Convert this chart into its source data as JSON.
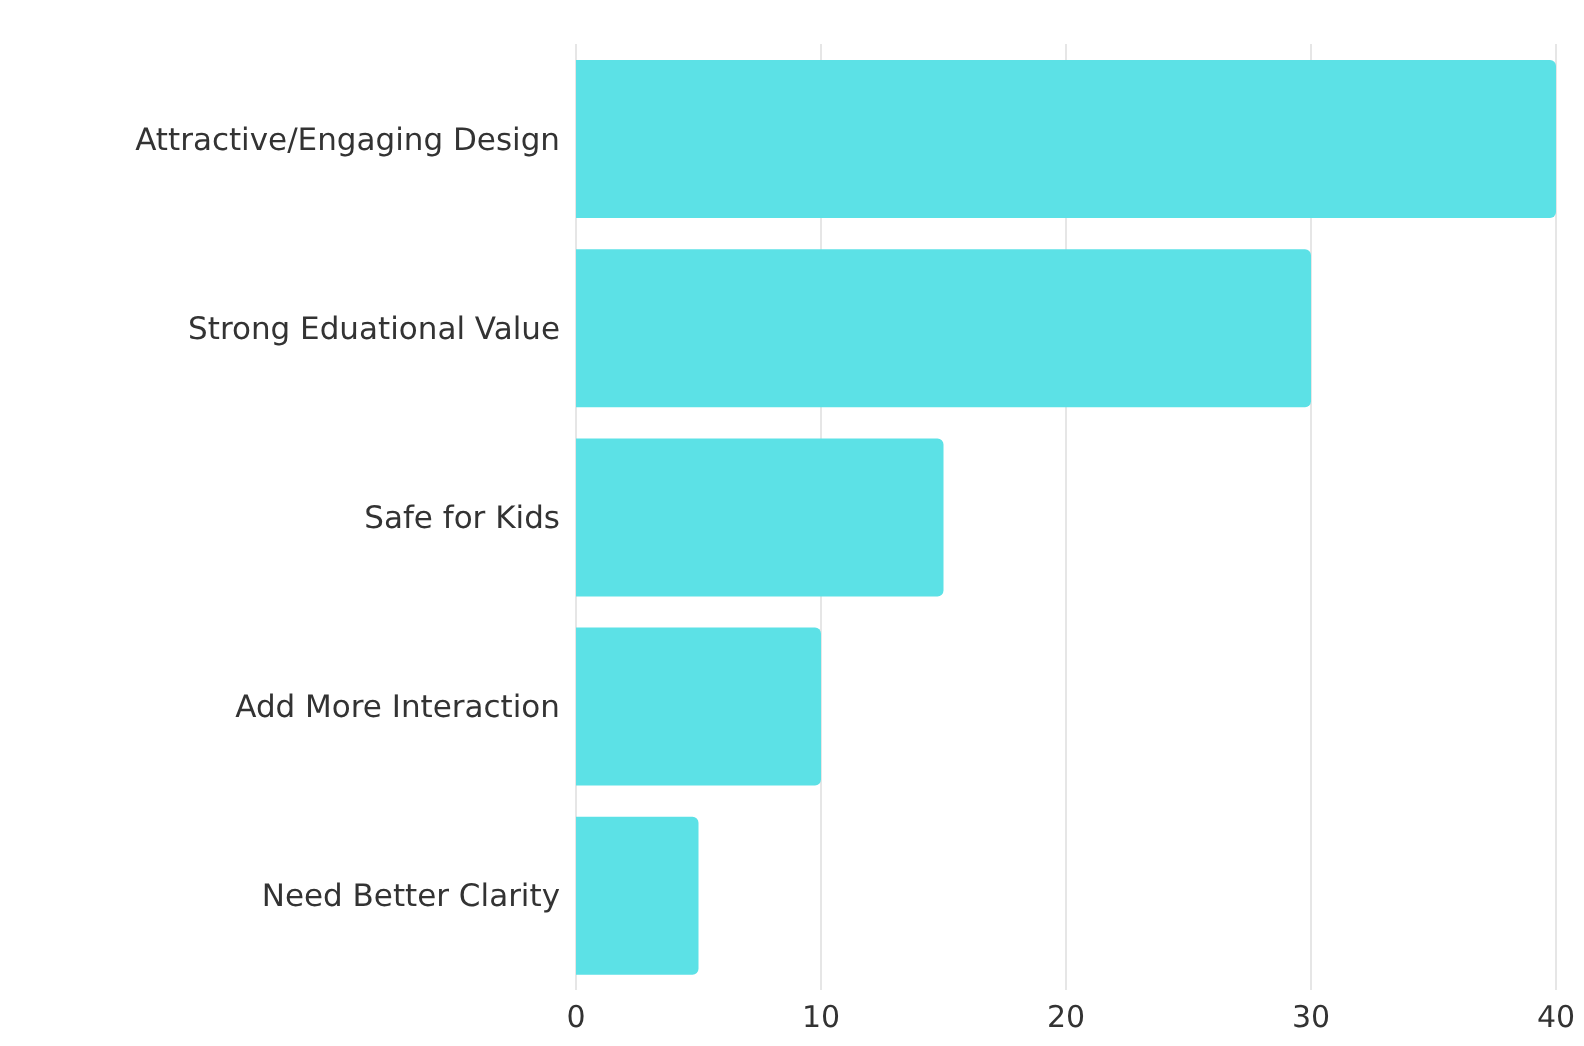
{
  "chart_data": {
    "type": "bar",
    "orientation": "horizontal",
    "categories": [
      "Attractive/Engaging Design",
      "Strong Eduational Value",
      "Safe for Kids",
      "Add More Interaction",
      "Need Better Clarity"
    ],
    "values": [
      40,
      30,
      15,
      10,
      5
    ],
    "color": "#5ce1e6",
    "xlim": [
      0,
      40
    ],
    "xticks": [
      0,
      10,
      20,
      30,
      40
    ],
    "grid": "x"
  }
}
